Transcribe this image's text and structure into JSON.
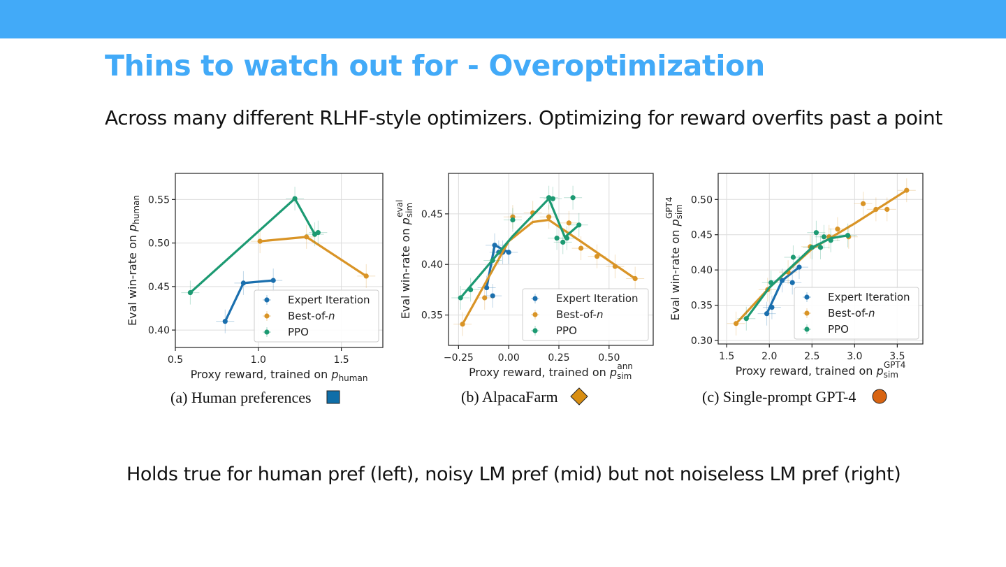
{
  "slide": {
    "title": "Thins to watch out for - Overoptimization",
    "subtitle": "Across many different RLHF-style optimizers. Optimizing for reward overfits past a point",
    "footer": "Holds true for human pref (left), noisy LM pref (mid) but not noiseless LM pref (right)"
  },
  "colors": {
    "expert_iteration": "#1a6fae",
    "best_of_n": "#d99426",
    "ppo": "#1c9a72",
    "accent": "#42aaf8"
  },
  "chart_data": [
    {
      "type": "line",
      "caption": "(a) Human preferences",
      "marker": "square",
      "marker_color": "#0f6ea8",
      "xlabel": "Proxy reward, trained on p",
      "xlabel_sub": "human",
      "ylabel": "Eval win-rate on p",
      "ylabel_sub": "human",
      "xlim": [
        0.5,
        1.75
      ],
      "ylim": [
        0.38,
        0.58
      ],
      "xticks": [
        0.5,
        1.0,
        1.5
      ],
      "xtick_labels": [
        "0.5",
        "1.0",
        "1.5"
      ],
      "yticks": [
        0.4,
        0.45,
        0.5,
        0.55
      ],
      "ytick_labels": [
        "0.40",
        "0.45",
        "0.50",
        "0.55"
      ],
      "grid": true,
      "legend": "lower-right",
      "series": [
        {
          "name": "Expert Iteration",
          "color": "expert_iteration",
          "fit": [
            [
              0.8,
              0.41
            ],
            [
              0.91,
              0.454
            ],
            [
              1.09,
              0.457
            ]
          ],
          "points": [
            [
              0.8,
              0.41
            ],
            [
              0.91,
              0.454
            ],
            [
              1.09,
              0.457
            ]
          ]
        },
        {
          "name": "Best-of-n",
          "color": "best_of_n",
          "fit": [
            [
              1.01,
              0.502
            ],
            [
              1.29,
              0.507
            ],
            [
              1.65,
              0.462
            ]
          ],
          "points": [
            [
              1.01,
              0.502
            ],
            [
              1.29,
              0.507
            ],
            [
              1.65,
              0.462
            ]
          ]
        },
        {
          "name": "PPO",
          "color": "ppo",
          "fit": [
            [
              0.59,
              0.443
            ],
            [
              1.22,
              0.551
            ],
            [
              1.34,
              0.51
            ],
            [
              1.36,
              0.512
            ]
          ],
          "points": [
            [
              0.59,
              0.443
            ],
            [
              1.22,
              0.551
            ],
            [
              1.34,
              0.51
            ],
            [
              1.36,
              0.512
            ]
          ]
        }
      ]
    },
    {
      "type": "line",
      "caption": "(b) AlpacaFarm",
      "marker": "diamond",
      "marker_color": "#d88e12",
      "xlabel": "Proxy reward, trained on p",
      "xlabel_sub": "sim",
      "xlabel_sup": "ann",
      "ylabel": "Eval win-rate on p",
      "ylabel_sub": "sim",
      "ylabel_sup": "eval",
      "xlim": [
        -0.3,
        0.72
      ],
      "ylim": [
        0.32,
        0.49
      ],
      "xticks": [
        -0.25,
        0.0,
        0.25,
        0.5
      ],
      "xtick_labels": [
        "−0.25",
        "0.00",
        "0.25",
        "0.50"
      ],
      "yticks": [
        0.35,
        0.4,
        0.45
      ],
      "ytick_labels": [
        "0.35",
        "0.40",
        "0.45"
      ],
      "grid": true,
      "legend": "lower-right",
      "series": [
        {
          "name": "Expert Iteration",
          "color": "expert_iteration",
          "fit": [
            [
              -0.11,
              0.377
            ],
            [
              -0.07,
              0.419
            ],
            [
              0.0,
              0.412
            ]
          ],
          "points": [
            [
              -0.11,
              0.377
            ],
            [
              -0.08,
              0.369
            ],
            [
              -0.07,
              0.419
            ],
            [
              -0.05,
              0.412
            ],
            [
              -0.03,
              0.412
            ],
            [
              0.0,
              0.412
            ]
          ]
        },
        {
          "name": "Best-of-n",
          "color": "best_of_n",
          "fit": [
            [
              -0.23,
              0.341
            ],
            [
              0.0,
              0.423
            ],
            [
              0.12,
              0.442
            ],
            [
              0.2,
              0.444
            ],
            [
              0.35,
              0.424
            ],
            [
              0.63,
              0.386
            ]
          ],
          "points": [
            [
              -0.23,
              0.341
            ],
            [
              -0.12,
              0.367
            ],
            [
              0.02,
              0.447
            ],
            [
              0.12,
              0.451
            ],
            [
              0.2,
              0.447
            ],
            [
              0.3,
              0.441
            ],
            [
              0.36,
              0.416
            ],
            [
              0.44,
              0.408
            ],
            [
              0.53,
              0.398
            ],
            [
              0.63,
              0.386
            ]
          ]
        },
        {
          "name": "PPO",
          "color": "ppo",
          "fit": [
            [
              -0.24,
              0.367
            ],
            [
              -0.15,
              0.388
            ],
            [
              0.02,
              0.428
            ],
            [
              0.2,
              0.465
            ],
            [
              0.28,
              0.427
            ],
            [
              0.35,
              0.439
            ]
          ],
          "points": [
            [
              -0.24,
              0.367
            ],
            [
              -0.19,
              0.375
            ],
            [
              -0.08,
              0.404
            ],
            [
              0.02,
              0.444
            ],
            [
              0.2,
              0.466
            ],
            [
              0.22,
              0.465
            ],
            [
              0.24,
              0.426
            ],
            [
              0.27,
              0.422
            ],
            [
              0.29,
              0.426
            ],
            [
              0.32,
              0.466
            ],
            [
              0.35,
              0.439
            ]
          ]
        }
      ]
    },
    {
      "type": "line",
      "caption": "(c) Single-prompt GPT-4",
      "marker": "circle",
      "marker_color": "#d86412",
      "xlabel": "Proxy reward, trained on p",
      "xlabel_sub": "sim",
      "xlabel_sup": "GPT4",
      "ylabel": "Eval win-rate on p",
      "ylabel_sub": "sim",
      "ylabel_sup": "GPT4",
      "xlim": [
        1.4,
        3.8
      ],
      "ylim": [
        0.295,
        0.537
      ],
      "xticks": [
        1.5,
        2.0,
        2.5,
        3.0,
        3.5
      ],
      "xtick_labels": [
        "1.5",
        "2.0",
        "2.5",
        "3.0",
        "3.5"
      ],
      "yticks": [
        0.3,
        0.35,
        0.4,
        0.45,
        0.5
      ],
      "ytick_labels": [
        "0.30",
        "0.35",
        "0.40",
        "0.45",
        "0.50"
      ],
      "grid": true,
      "legend": "lower-right",
      "series": [
        {
          "name": "Expert Iteration",
          "color": "expert_iteration",
          "fit": [
            [
              1.97,
              0.338
            ],
            [
              2.15,
              0.385
            ],
            [
              2.35,
              0.404
            ]
          ],
          "points": [
            [
              1.97,
              0.338
            ],
            [
              2.03,
              0.347
            ],
            [
              2.15,
              0.385
            ],
            [
              2.27,
              0.382
            ],
            [
              2.35,
              0.404
            ]
          ]
        },
        {
          "name": "Best-of-n",
          "color": "best_of_n",
          "fit": [
            [
              1.61,
              0.324
            ],
            [
              2.0,
              0.375
            ],
            [
              2.5,
              0.43
            ],
            [
              3.0,
              0.466
            ],
            [
              3.61,
              0.513
            ]
          ],
          "points": [
            [
              1.61,
              0.324
            ],
            [
              1.98,
              0.372
            ],
            [
              2.22,
              0.397
            ],
            [
              2.48,
              0.433
            ],
            [
              2.7,
              0.447
            ],
            [
              2.8,
              0.458
            ],
            [
              2.93,
              0.447
            ],
            [
              3.1,
              0.494
            ],
            [
              3.25,
              0.486
            ],
            [
              3.38,
              0.486
            ],
            [
              3.61,
              0.513
            ]
          ]
        },
        {
          "name": "PPO",
          "color": "ppo",
          "fit": [
            [
              1.73,
              0.331
            ],
            [
              2.0,
              0.375
            ],
            [
              2.5,
              0.432
            ],
            [
              2.72,
              0.445
            ],
            [
              2.92,
              0.449
            ]
          ],
          "points": [
            [
              1.73,
              0.331
            ],
            [
              2.02,
              0.382
            ],
            [
              2.28,
              0.418
            ],
            [
              2.5,
              0.432
            ],
            [
              2.55,
              0.453
            ],
            [
              2.6,
              0.432
            ],
            [
              2.64,
              0.447
            ],
            [
              2.72,
              0.442
            ],
            [
              2.92,
              0.449
            ]
          ]
        }
      ]
    }
  ]
}
